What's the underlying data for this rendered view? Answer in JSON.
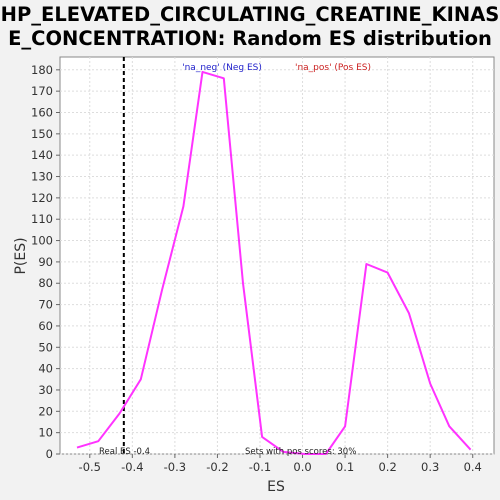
{
  "chart_data": {
    "type": "line",
    "title_lines": [
      "HP_ELEVATED_CIRCULATING_CREATINE_KINAS",
      "E_CONCENTRATION: Random ES distribution"
    ],
    "xlabel": "ES",
    "ylabel": "P(ES)",
    "xlim": [
      -0.57,
      0.45
    ],
    "ylim": [
      0,
      186
    ],
    "x_ticks": [
      -0.5,
      -0.4,
      -0.3,
      -0.2,
      -0.1,
      0.0,
      0.1,
      0.2,
      0.3,
      0.4
    ],
    "x_tick_labels": [
      "-0.5",
      "-0.4",
      "-0.3",
      "-0.2",
      "-0.1",
      "0.0",
      "0.1",
      "0.2",
      "0.3",
      "0.4"
    ],
    "y_ticks": [
      0,
      10,
      20,
      30,
      40,
      50,
      60,
      70,
      80,
      90,
      100,
      110,
      120,
      130,
      140,
      150,
      160,
      170,
      180
    ],
    "grid": true,
    "series": [
      {
        "color": "#ff33ff",
        "x": [
          -0.53,
          -0.48,
          -0.43,
          -0.38,
          -0.33,
          -0.28,
          -0.235,
          -0.185,
          -0.14,
          -0.095,
          -0.045,
          0.005,
          0.055,
          0.1,
          0.15,
          0.2,
          0.25,
          0.3,
          0.345,
          0.395
        ],
        "y": [
          3,
          6,
          19,
          35,
          77,
          116,
          179,
          176,
          80,
          8,
          1,
          0,
          0,
          13,
          89,
          85,
          66,
          33,
          13,
          2
        ]
      }
    ],
    "legend": [
      {
        "label": "'na_neg' (Neg ES)",
        "color": "#2222cc"
      },
      {
        "label": "'na_pos' (Pos ES)",
        "color": "#cc2222"
      }
    ],
    "legend_position": "top",
    "vline": {
      "x": -0.42,
      "style": "dashed",
      "color": "#000000"
    },
    "annotations": {
      "real_es": "Real ES -0.4",
      "pos_scores": "Sets with pos scores: 30%"
    }
  }
}
